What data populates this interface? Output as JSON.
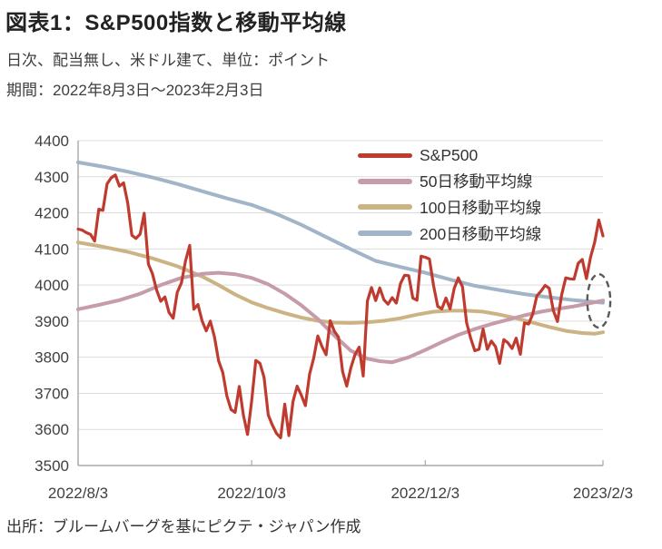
{
  "header": {
    "title": "図表1：S&P500指数と移動平均線",
    "subtitle_units": "日次、配当無し、米ドル建て、単位：ポイント",
    "subtitle_period": "期間：2022年8月3日～2023年2月3日"
  },
  "footer": {
    "source": "出所：ブルームバーグを基にピクテ・ジャパン作成"
  },
  "chart_data": {
    "type": "line",
    "ylim": [
      3500,
      4400
    ],
    "yticks": [
      3500,
      3600,
      3700,
      3800,
      3900,
      4000,
      4100,
      4200,
      4300,
      4400
    ],
    "x_count": 128,
    "xticks": [
      {
        "index": 0,
        "label": "2022/8/3"
      },
      {
        "index": 42,
        "label": "2022/10/3"
      },
      {
        "index": 84,
        "label": "2022/12/3"
      },
      {
        "index": 127,
        "label": "2023/2/3"
      }
    ],
    "grid": true,
    "grid_color": "#dcdcdc",
    "axis_color": "#a8a8a8",
    "tick_label_color": "#404040",
    "legend_position": "top-right-inside",
    "annotation": {
      "shape": "ellipse",
      "style": "dashed",
      "meaning": "golden-cross-highlight",
      "x_index": 126,
      "value": 3956,
      "value_radius": 74,
      "x_radius_days": 2.8,
      "color": "#595959"
    },
    "series": [
      {
        "key": "sp500",
        "name": "S&P500",
        "color": "#bf3b2f",
        "width": 3.2,
        "values": [
          4155,
          4152,
          4145,
          4140,
          4122,
          4210,
          4207,
          4280,
          4297,
          4305,
          4274,
          4283,
          4228,
          4138,
          4129,
          4141,
          4199,
          4058,
          4031,
          3986,
          3955,
          3967,
          3924,
          3908,
          3980,
          4006,
          4067,
          4110,
          3933,
          3946,
          3901,
          3873,
          3900,
          3856,
          3790,
          3758,
          3693,
          3655,
          3647,
          3719,
          3640,
          3586,
          3678,
          3791,
          3783,
          3744,
          3640,
          3612,
          3589,
          3577,
          3670,
          3583,
          3678,
          3720,
          3695,
          3666,
          3753,
          3797,
          3859,
          3830,
          3807,
          3901,
          3872,
          3856,
          3760,
          3720,
          3771,
          3807,
          3828,
          3748,
          3956,
          3993,
          3957,
          3992,
          3959,
          3947,
          3965,
          3950,
          4004,
          4027,
          4026,
          3964,
          3958,
          4080,
          4077,
          4072,
          3999,
          3941,
          3934,
          3964,
          3934,
          3991,
          4020,
          3995,
          3896,
          3852,
          3818,
          3822,
          3878,
          3822,
          3845,
          3829,
          3783,
          3849,
          3840,
          3824,
          3853,
          3808,
          3895,
          3892,
          3919,
          3970,
          3983,
          3999,
          3991,
          3929,
          3899,
          3973,
          4020,
          4017,
          4016,
          4060,
          4071,
          4018,
          4077,
          4119,
          4180,
          4136
        ]
      },
      {
        "key": "ma50",
        "name": "50日移動平均線",
        "color": "#c69ca9",
        "width": 4,
        "points": [
          [
            0,
            3933
          ],
          [
            5,
            3945
          ],
          [
            10,
            3958
          ],
          [
            15,
            3976
          ],
          [
            20,
            4000
          ],
          [
            25,
            4020
          ],
          [
            30,
            4031
          ],
          [
            34,
            4034
          ],
          [
            38,
            4030
          ],
          [
            42,
            4020
          ],
          [
            46,
            4002
          ],
          [
            50,
            3976
          ],
          [
            54,
            3944
          ],
          [
            58,
            3906
          ],
          [
            62,
            3860
          ],
          [
            66,
            3818
          ],
          [
            70,
            3796
          ],
          [
            73,
            3789
          ],
          [
            76,
            3786
          ],
          [
            80,
            3800
          ],
          [
            84,
            3820
          ],
          [
            88,
            3842
          ],
          [
            92,
            3862
          ],
          [
            96,
            3878
          ],
          [
            100,
            3892
          ],
          [
            104,
            3904
          ],
          [
            108,
            3916
          ],
          [
            112,
            3926
          ],
          [
            116,
            3934
          ],
          [
            120,
            3941
          ],
          [
            124,
            3950
          ],
          [
            127,
            3957
          ]
        ]
      },
      {
        "key": "ma100",
        "name": "100日移動平均線",
        "color": "#ccb383",
        "width": 4,
        "points": [
          [
            0,
            4118
          ],
          [
            6,
            4106
          ],
          [
            12,
            4092
          ],
          [
            18,
            4074
          ],
          [
            24,
            4052
          ],
          [
            30,
            4024
          ],
          [
            34,
            4000
          ],
          [
            38,
            3974
          ],
          [
            42,
            3952
          ],
          [
            46,
            3936
          ],
          [
            50,
            3922
          ],
          [
            54,
            3910
          ],
          [
            58,
            3901
          ],
          [
            62,
            3896
          ],
          [
            66,
            3895
          ],
          [
            70,
            3897
          ],
          [
            74,
            3901
          ],
          [
            78,
            3908
          ],
          [
            82,
            3918
          ],
          [
            86,
            3926
          ],
          [
            90,
            3929
          ],
          [
            94,
            3929
          ],
          [
            98,
            3926
          ],
          [
            102,
            3918
          ],
          [
            106,
            3908
          ],
          [
            110,
            3896
          ],
          [
            114,
            3884
          ],
          [
            118,
            3873
          ],
          [
            122,
            3867
          ],
          [
            125,
            3865
          ],
          [
            127,
            3869
          ]
        ]
      },
      {
        "key": "ma200",
        "name": "200日移動平均線",
        "color": "#a2b4c8",
        "width": 4,
        "points": [
          [
            0,
            4340
          ],
          [
            6,
            4328
          ],
          [
            12,
            4314
          ],
          [
            18,
            4298
          ],
          [
            24,
            4280
          ],
          [
            30,
            4260
          ],
          [
            36,
            4240
          ],
          [
            42,
            4222
          ],
          [
            48,
            4197
          ],
          [
            54,
            4167
          ],
          [
            60,
            4133
          ],
          [
            66,
            4099
          ],
          [
            72,
            4067
          ],
          [
            78,
            4050
          ],
          [
            84,
            4034
          ],
          [
            90,
            4015
          ],
          [
            96,
            3998
          ],
          [
            102,
            3986
          ],
          [
            108,
            3975
          ],
          [
            114,
            3966
          ],
          [
            120,
            3958
          ],
          [
            124,
            3954
          ],
          [
            127,
            3951
          ]
        ]
      }
    ]
  }
}
